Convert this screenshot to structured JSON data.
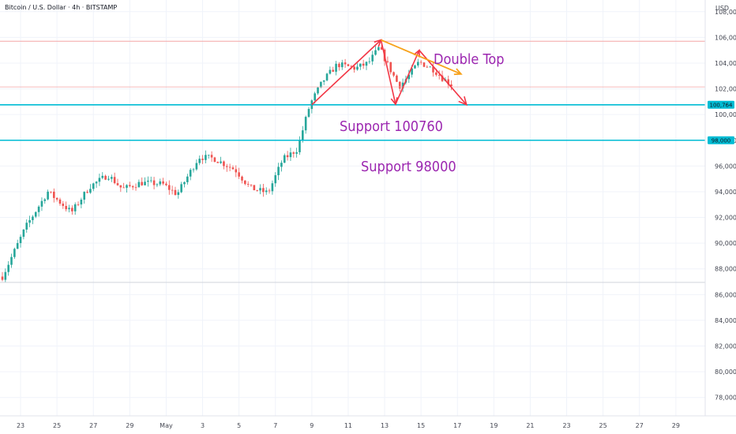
{
  "header": {
    "title": "Bitcoin / U.S. Dollar · 4h · BITSTAMP",
    "currency": "USD"
  },
  "colors": {
    "up": "#26a69a",
    "down": "#ef5350",
    "support": "#00bcd4",
    "pattern": "#f23645",
    "trend": "#f7a21b",
    "annotation": "#9c27b0",
    "grid": "#f0f3fa"
  },
  "chart_data": {
    "type": "candlestick",
    "x_axis": {
      "tick_labels": [
        "23",
        "25",
        "27",
        "29",
        "May",
        "3",
        "5",
        "7",
        "9",
        "11",
        "13",
        "15",
        "17",
        "19",
        "21",
        "23",
        "25",
        "27",
        "29"
      ]
    },
    "y_axis": {
      "range": [
        77000,
        108600
      ],
      "tick_values": [
        108000,
        106000,
        104000,
        102000,
        100000,
        98000,
        96000,
        94000,
        92000,
        90000,
        88000,
        86000,
        84000,
        82000,
        80000,
        78000
      ],
      "tick_labels": [
        "108,000",
        "106,000",
        "104,000",
        "102,000",
        "100,000",
        "98,000",
        "96,000",
        "94,000",
        "92,000",
        "90,000",
        "88,000",
        "86,000",
        "84,000",
        "82,000",
        "80,000",
        "78,000"
      ]
    },
    "anchors": [
      [
        22.0,
        87400
      ],
      [
        23.3,
        91300
      ],
      [
        24.5,
        94000
      ],
      [
        25.8,
        92400
      ],
      [
        26.8,
        94400
      ],
      [
        27.8,
        95300
      ],
      [
        28.6,
        94200
      ],
      [
        29.6,
        94700
      ],
      [
        30.8,
        94600
      ],
      [
        31.6,
        93800
      ],
      [
        32.8,
        96700
      ],
      [
        33.6,
        96600
      ],
      [
        34.8,
        95700
      ],
      [
        35.6,
        94300
      ],
      [
        36.6,
        93900
      ],
      [
        37.4,
        96500
      ],
      [
        38.2,
        97300
      ],
      [
        38.9,
        100800
      ],
      [
        39.6,
        102600
      ],
      [
        40.4,
        103900
      ],
      [
        41.4,
        103600
      ],
      [
        42.1,
        104000
      ],
      [
        42.7,
        105200
      ],
      [
        43.2,
        103800
      ],
      [
        43.8,
        102200
      ],
      [
        44.2,
        102800
      ],
      [
        44.9,
        104100
      ],
      [
        45.7,
        103500
      ],
      [
        46.2,
        102800
      ],
      [
        46.7,
        102300
      ]
    ],
    "support_levels": [
      {
        "price": 100760,
        "label": "Support 100760",
        "badge": "100,764"
      },
      {
        "price": 98000,
        "label": "Support 98000",
        "badge": "98,000"
      }
    ],
    "annotations": [
      {
        "text": "Double Top"
      }
    ]
  }
}
